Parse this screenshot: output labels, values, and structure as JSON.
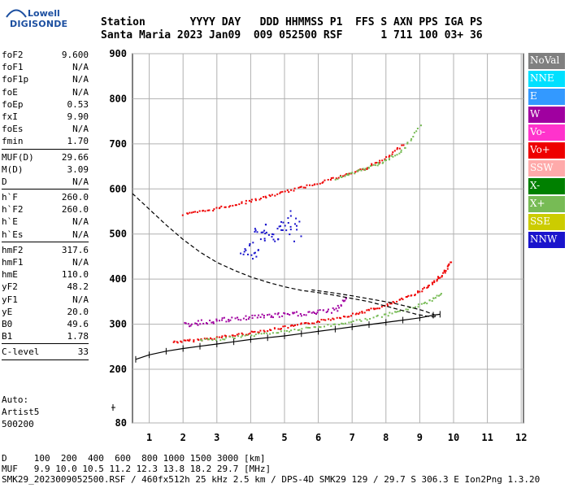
{
  "logo": {
    "line1": "Lowell",
    "line2": "DIGISONDE"
  },
  "header": {
    "line1": "Station       YYYY DAY   DDD HHMMSS P1  FFS S AXN PPS IGA PS",
    "line2": "Santa Maria 2023 Jan09  009 052500 RSF      1 711 100 03+ 36"
  },
  "params": [
    {
      "group": 1,
      "label": "foF2",
      "value": "9.600"
    },
    {
      "group": 1,
      "label": "foF1",
      "value": "N/A"
    },
    {
      "group": 1,
      "label": "foF1p",
      "value": "N/A"
    },
    {
      "group": 1,
      "label": "foE",
      "value": "N/A"
    },
    {
      "group": 1,
      "label": "foEp",
      "value": "0.53"
    },
    {
      "group": 1,
      "label": "fxI",
      "value": "9.90"
    },
    {
      "group": 1,
      "label": "foEs",
      "value": "N/A"
    },
    {
      "group": 1,
      "label": "fmin",
      "value": "1.70"
    },
    {
      "group": 2,
      "label": "MUF(D)",
      "value": "29.66"
    },
    {
      "group": 2,
      "label": "M(D)",
      "value": "3.09"
    },
    {
      "group": 2,
      "label": "D",
      "value": "N/A"
    },
    {
      "group": 3,
      "label": "h`F",
      "value": "260.0"
    },
    {
      "group": 3,
      "label": "h`F2",
      "value": "260.0"
    },
    {
      "group": 3,
      "label": "h`E",
      "value": "N/A"
    },
    {
      "group": 3,
      "label": "h`Es",
      "value": "N/A"
    },
    {
      "group": 4,
      "label": "hmF2",
      "value": "317.6"
    },
    {
      "group": 4,
      "label": "hmF1",
      "value": "N/A"
    },
    {
      "group": 4,
      "label": "hmE",
      "value": "110.0"
    },
    {
      "group": 4,
      "label": "yF2",
      "value": "48.2"
    },
    {
      "group": 4,
      "label": "yF1",
      "value": "N/A"
    },
    {
      "group": 4,
      "label": "yE",
      "value": "20.0"
    },
    {
      "group": 4,
      "label": "B0",
      "value": "49.6"
    },
    {
      "group": 4,
      "label": "B1",
      "value": "1.78"
    },
    {
      "group": 5,
      "label": "C-level",
      "value": "33"
    }
  ],
  "auto": {
    "line1": "Auto:",
    "line2": "Artist5",
    "line3": "500200"
  },
  "legend": [
    {
      "label": "NoVal",
      "color": "#808080",
      "text": "#ffffff"
    },
    {
      "label": "NNE",
      "color": "#00e0ff",
      "text": "#ffffff"
    },
    {
      "label": "E",
      "color": "#3399ff",
      "text": "#ffffff"
    },
    {
      "label": "W",
      "color": "#a000a0",
      "text": "#ffffff"
    },
    {
      "label": "Vo-",
      "color": "#ff33cc",
      "text": "#ffffff"
    },
    {
      "label": "Vo+",
      "color": "#ee0000",
      "text": "#ffffff"
    },
    {
      "label": "SSW",
      "color": "#ffaaaa",
      "text": "#ffffff"
    },
    {
      "label": "X-",
      "color": "#008000",
      "text": "#ffffff"
    },
    {
      "label": "X+",
      "color": "#77bb55",
      "text": "#ffffff"
    },
    {
      "label": "SSE",
      "color": "#cccc00",
      "text": "#ffffff"
    },
    {
      "label": "NNW",
      "color": "#1a14cc",
      "text": "#ffffff"
    }
  ],
  "footer": {
    "line1": "D     100  200  400  600  800 1000 1500 3000 [km]",
    "line2": "MUF   9.9 10.0 10.5 11.2 12.3 13.8 18.2 29.7 [MHz]",
    "line3": "SMK29_2023009052500.RSF / 460fx512h 25 kHz 2.5 km / DPS-4D SMK29 129 / 29.7 S 306.3 E Ion2Png 1.3.20"
  },
  "chart_data": {
    "type": "scatter",
    "xlim": [
      0.5,
      12
    ],
    "ylim": [
      80,
      900
    ],
    "x_ticks": [
      1,
      2,
      3,
      4,
      5,
      6,
      7,
      8,
      9,
      10,
      11,
      12
    ],
    "y_ticks": [
      80,
      200,
      300,
      400,
      500,
      600,
      700,
      800,
      900
    ],
    "grid": true,
    "series": [
      {
        "name": "Vo+",
        "color": "#ee0000",
        "x": [
          1.7,
          2.2,
          2.8,
          3.4,
          4.0,
          4.6,
          5.2,
          5.8,
          6.4,
          7.0,
          7.5,
          8.0,
          8.5,
          9.0,
          9.4,
          9.7,
          9.9
        ],
        "y": [
          262,
          265,
          270,
          276,
          283,
          290,
          297,
          305,
          314,
          323,
          333,
          343,
          358,
          375,
          395,
          415,
          440
        ]
      },
      {
        "name": "X+",
        "color": "#77bb55",
        "x": [
          2.5,
          3.2,
          4.0,
          4.8,
          5.6,
          6.4,
          7.2,
          8.0,
          8.6,
          9.2,
          9.6
        ],
        "y": [
          265,
          270,
          277,
          284,
          292,
          300,
          310,
          322,
          335,
          350,
          370
        ]
      },
      {
        "name": "Vo+ (2F)",
        "color": "#ee0000",
        "x": [
          2.0,
          2.6,
          3.2,
          3.8,
          4.4,
          5.0,
          5.6,
          6.2,
          6.8,
          7.4,
          8.0,
          8.5
        ],
        "y": [
          545,
          552,
          562,
          572,
          583,
          595,
          607,
          620,
          633,
          648,
          670,
          700
        ]
      },
      {
        "name": "X+ (2F)",
        "color": "#77bb55",
        "x": [
          6.5,
          7.0,
          7.5,
          8.0,
          8.5,
          9.0
        ],
        "y": [
          625,
          637,
          650,
          665,
          690,
          740
        ]
      },
      {
        "name": "W",
        "color": "#a000a0",
        "x": [
          2.0,
          2.5,
          3.0,
          3.5,
          4.0,
          4.5,
          5.0,
          5.5,
          6.0,
          6.5,
          6.8
        ],
        "y": [
          300,
          305,
          310,
          312,
          318,
          320,
          322,
          325,
          328,
          333,
          360
        ]
      },
      {
        "name": "NNW",
        "color": "#1a14cc",
        "x": [
          3.8,
          4.0,
          4.3,
          4.6,
          4.9,
          5.1,
          5.4
        ],
        "y": [
          470,
          455,
          520,
          490,
          500,
          540,
          495
        ]
      }
    ],
    "profile": {
      "x": [
        0.5,
        1.0,
        1.5,
        2.0,
        2.5,
        3.0,
        3.5,
        4.0,
        4.5,
        5.0,
        5.5,
        6.0,
        6.5,
        7.0,
        7.5,
        8.0,
        8.5,
        8.9,
        9.2,
        9.4,
        9.5,
        9.4,
        9.1,
        8.7,
        8.2,
        7.6,
        7.0,
        6.4,
        5.8
      ],
      "y": [
        590,
        555,
        520,
        488,
        460,
        437,
        420,
        405,
        393,
        383,
        375,
        370,
        364,
        357,
        350,
        340,
        330,
        322,
        318,
        316,
        317,
        322,
        330,
        338,
        347,
        355,
        363,
        370,
        376
      ]
    },
    "trace": {
      "x": [
        0.6,
        1.0,
        1.5,
        2.0,
        2.5,
        3.0,
        3.5,
        4.0,
        4.5,
        5.0,
        5.5,
        6.0,
        6.5,
        7.0,
        7.5,
        8.0,
        8.5,
        9.0,
        9.4,
        9.6
      ],
      "y": [
        222,
        232,
        240,
        246,
        251,
        256,
        261,
        266,
        270,
        274,
        279,
        284,
        289,
        294,
        299,
        304,
        309,
        314,
        320,
        322
      ]
    }
  }
}
